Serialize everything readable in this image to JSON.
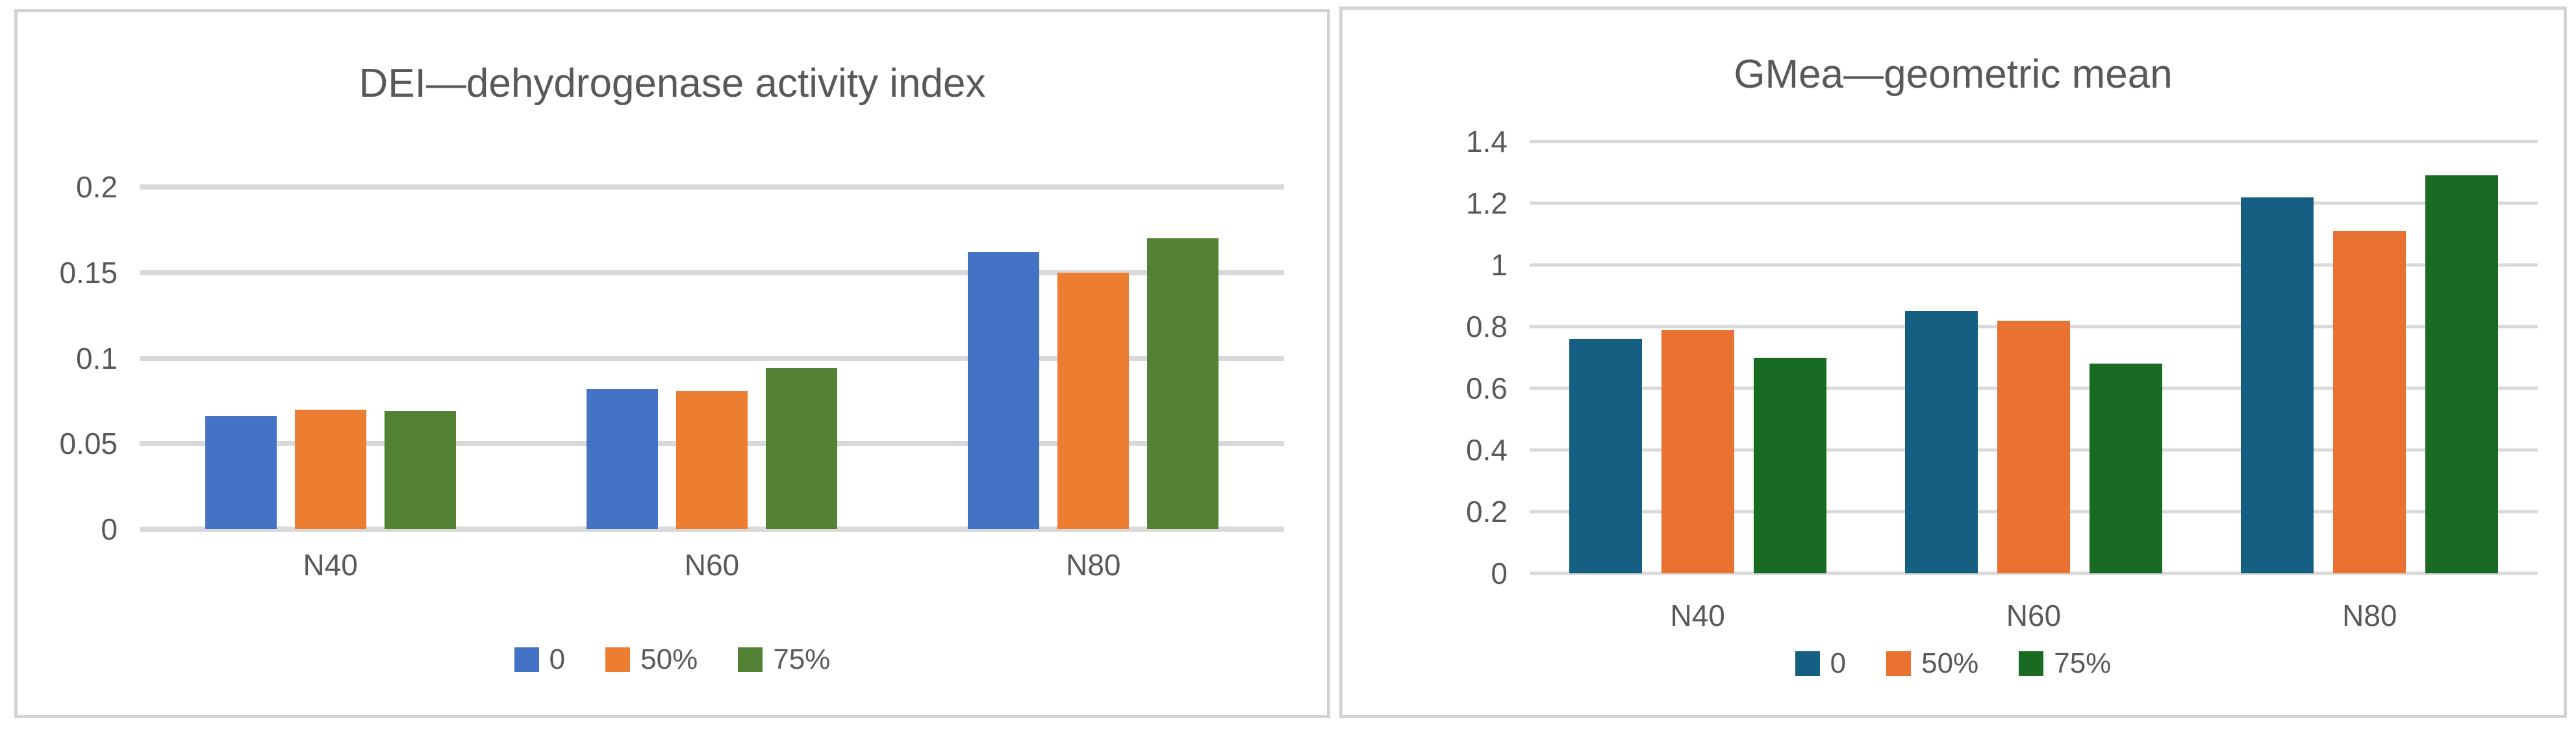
{
  "colors": {
    "text": "#595959",
    "gridline": "#D9D9D9",
    "panel_border": "#D3D3D3",
    "background": "#FFFFFF"
  },
  "chart_data": [
    {
      "type": "bar",
      "title": "DEI—dehydrogenase activity index",
      "categories": [
        "N40",
        "N60",
        "N80"
      ],
      "series": [
        {
          "name": "0",
          "color": "#4472C4",
          "values": [
            0.066,
            0.082,
            0.162
          ]
        },
        {
          "name": "50%",
          "color": "#ED7D31",
          "values": [
            0.07,
            0.081,
            0.15
          ]
        },
        {
          "name": "75%",
          "color": "#548235",
          "values": [
            0.069,
            0.094,
            0.17
          ]
        }
      ],
      "y_axis": {
        "min": 0,
        "max": 0.2,
        "ticks": [
          {
            "label": "0",
            "value": 0
          },
          {
            "label": "0.05",
            "value": 0.05
          },
          {
            "label": "0.1",
            "value": 0.1
          },
          {
            "label": "0.15",
            "value": 0.15
          },
          {
            "label": "0.2",
            "value": 0.2
          }
        ]
      },
      "gridlines": true,
      "legend_position": "bottom"
    },
    {
      "type": "bar",
      "title": "GMea—geometric mean",
      "categories": [
        "N40",
        "N60",
        "N80"
      ],
      "series": [
        {
          "name": "0",
          "color": "#156082",
          "values": [
            0.76,
            0.85,
            1.22
          ]
        },
        {
          "name": "50%",
          "color": "#E97132",
          "values": [
            0.79,
            0.82,
            1.11
          ]
        },
        {
          "name": "75%",
          "color": "#196B24",
          "values": [
            0.7,
            0.68,
            1.29
          ]
        }
      ],
      "y_axis": {
        "min": 0,
        "max": 1.4,
        "ticks": [
          {
            "label": "0",
            "value": 0
          },
          {
            "label": "0.2",
            "value": 0.2
          },
          {
            "label": "0.4",
            "value": 0.4
          },
          {
            "label": "0.6",
            "value": 0.6
          },
          {
            "label": "0.8",
            "value": 0.8
          },
          {
            "label": "1",
            "value": 1
          },
          {
            "label": "1.2",
            "value": 1.2
          },
          {
            "label": "1.4",
            "value": 1.4
          }
        ]
      },
      "gridlines": true,
      "legend_position": "bottom"
    }
  ]
}
